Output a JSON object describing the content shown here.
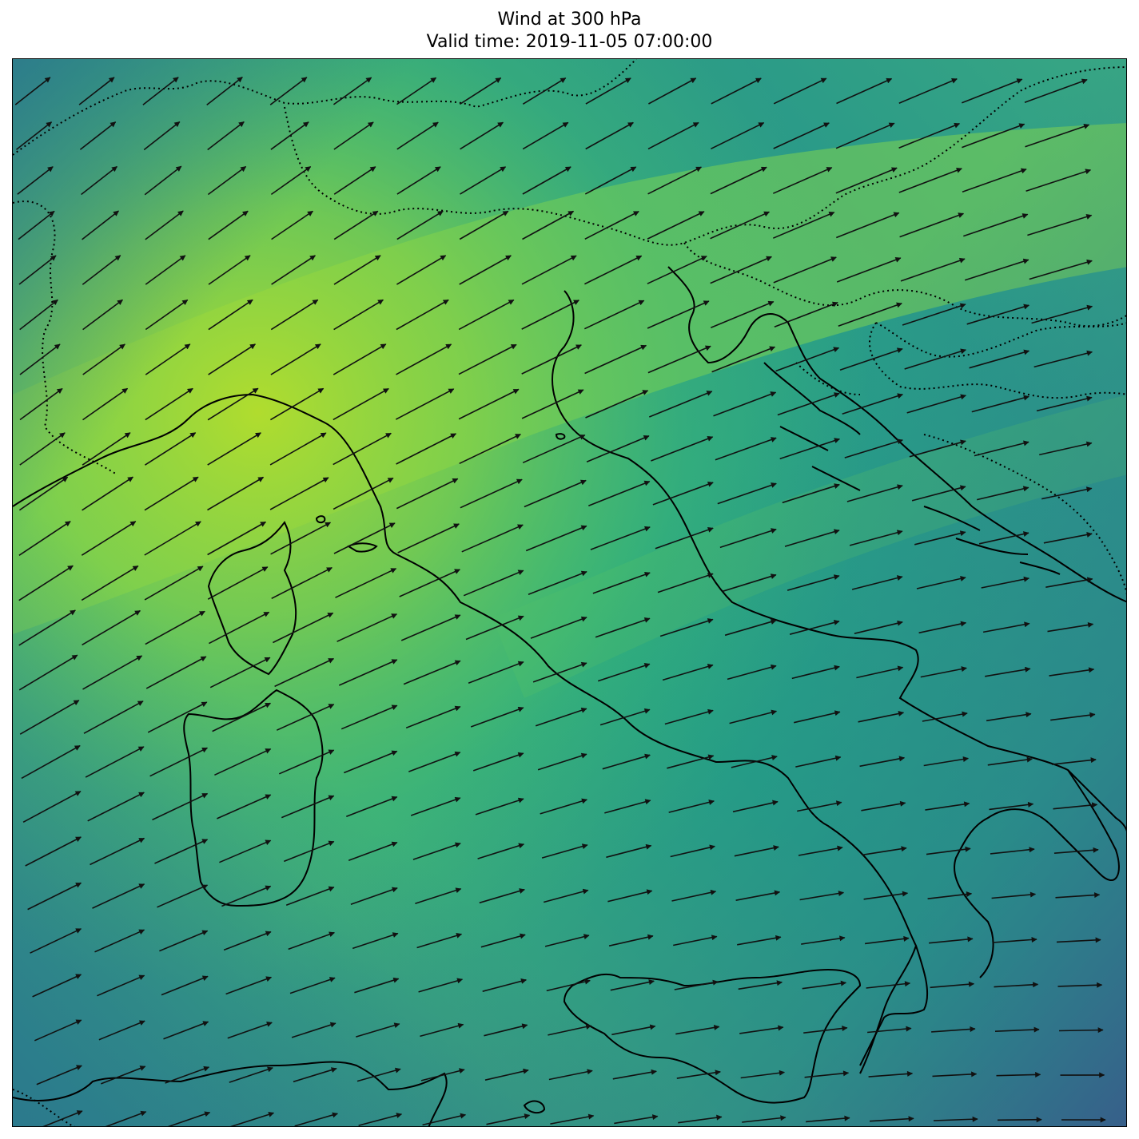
{
  "title": {
    "line1": "Wind at 300 hPa",
    "line2": "Valid time: 2019-11-05 07:00:00"
  },
  "map": {
    "field": "wind speed",
    "level": "300 hPa",
    "colormap": "viridis",
    "region": "Italy and central Mediterranean",
    "colors": {
      "low": "#3b5a8c",
      "mid_low": "#2a8a8a",
      "mid": "#22a884",
      "mid_high": "#5cc863",
      "high": "#b5de2b",
      "coastline": "#000000",
      "border": "#000000",
      "arrow": "#111111"
    },
    "layers": {
      "coastlines": "solid black",
      "country_borders": "dotted black",
      "wind_vectors": "black arrows"
    },
    "ticks": "none",
    "colorbar": "none"
  }
}
